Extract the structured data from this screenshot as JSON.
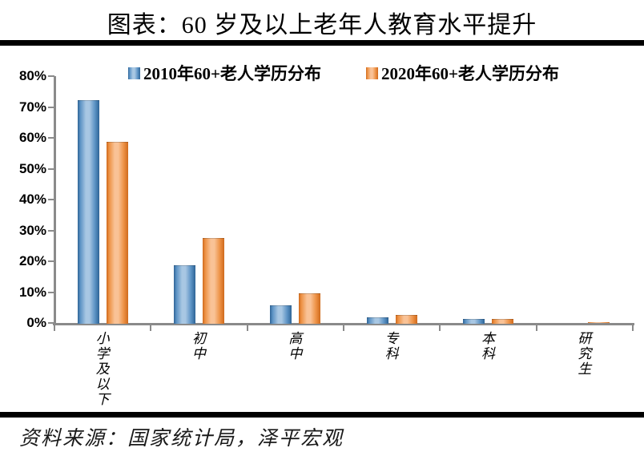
{
  "title": "图表：60 岁及以上老年人教育水平提升",
  "source_note": "资料来源：国家统计局，泽平宏观",
  "colors": {
    "blue_dark": "#2e6496",
    "blue_mid": "#5b92c4",
    "blue_light": "#a8c7e3",
    "orange_dark": "#cf6a1d",
    "orange_mid": "#ed9144",
    "orange_light": "#f9c296",
    "axis": "#8a8a8a",
    "rule": "#000000",
    "text": "#000000"
  },
  "chart_data": {
    "type": "bar",
    "title": "图表：60 岁及以上老年人教育水平提升",
    "categories": [
      "小学及以下",
      "初中",
      "高中",
      "专科",
      "本科",
      "研究生"
    ],
    "series": [
      {
        "name": "2010年60+老人学历分布",
        "color_key": "blue",
        "values": [
          72.1,
          18.7,
          5.7,
          1.9,
          1.3,
          0.1
        ]
      },
      {
        "name": "2020年60+老人学历分布",
        "color_key": "orange",
        "values": [
          58.6,
          27.5,
          9.6,
          2.5,
          1.2,
          0.2
        ]
      }
    ],
    "xlabel": "",
    "ylabel": "",
    "ylim": [
      0,
      80
    ],
    "ytick_step": 10,
    "ytick_labels": [
      "0%",
      "10%",
      "20%",
      "30%",
      "40%",
      "50%",
      "60%",
      "70%",
      "80%"
    ],
    "legend_position": "top-center",
    "grid": false
  }
}
